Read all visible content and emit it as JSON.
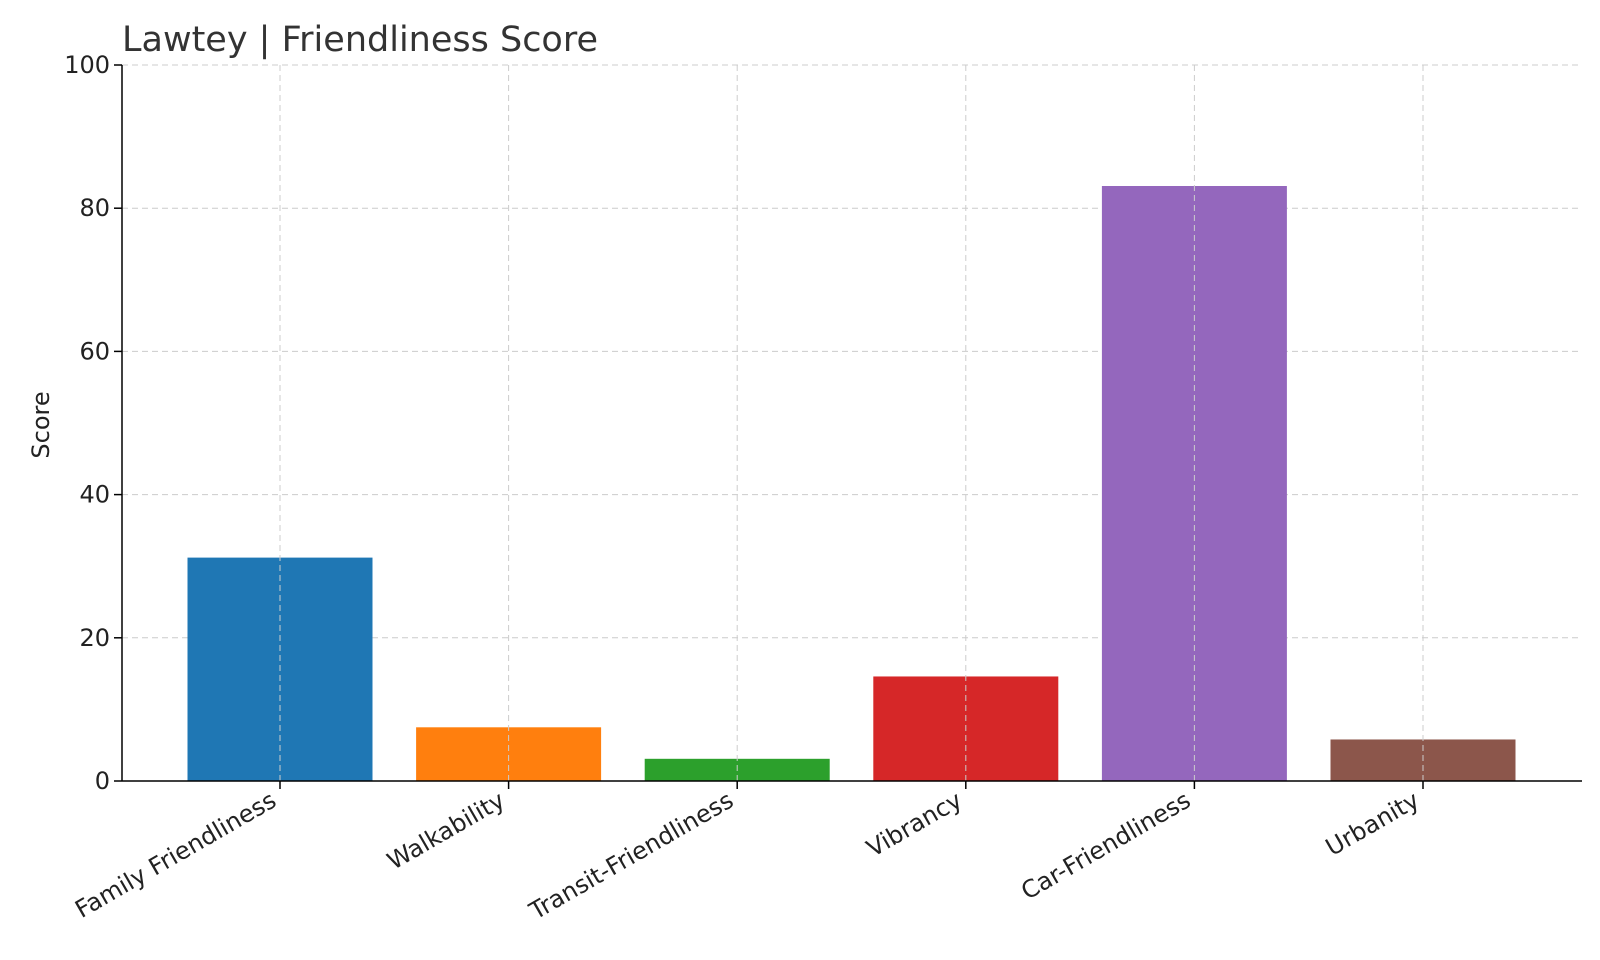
{
  "chart_data": {
    "type": "bar",
    "title": "Lawtey |  Friendliness Score",
    "xlabel": "",
    "ylabel": "Score",
    "ylim": [
      0,
      100
    ],
    "yticks": [
      0,
      20,
      40,
      60,
      80,
      100
    ],
    "grid": true,
    "categories": [
      "Family Friendliness",
      "Walkability",
      "Transit-Friendliness",
      "Vibrancy",
      "Car-Friendliness",
      "Urbanity"
    ],
    "values": [
      31.2,
      7.5,
      3.1,
      14.6,
      83.1,
      5.8
    ],
    "colors": [
      "#1f77b4",
      "#ff7f0e",
      "#2ca02c",
      "#d62728",
      "#9467bd",
      "#8c564b"
    ]
  }
}
